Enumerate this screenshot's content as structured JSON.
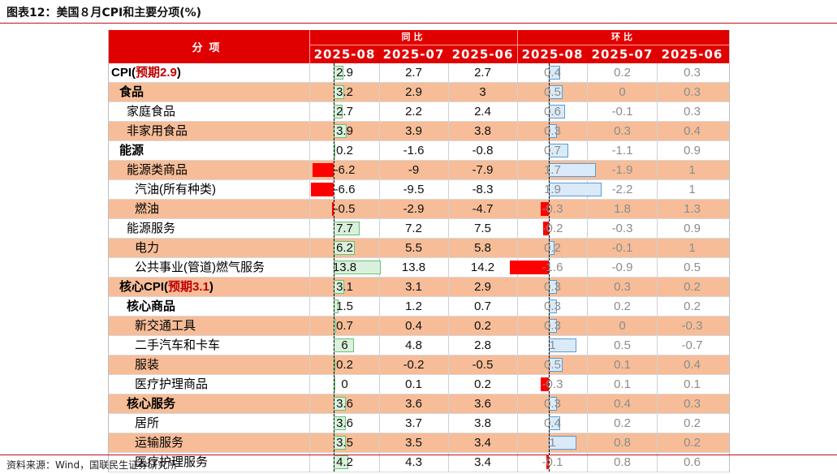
{
  "title": "图表12：美国８月CPI和主要分项(%)",
  "footer": "资料来源：Wind，国联民生证券研究所",
  "header": {
    "category": "分项",
    "yoy_label": "同比",
    "mom_label": "环比",
    "periods": [
      "2025-08",
      "2025-07",
      "2025-06"
    ]
  },
  "colors": {
    "header_bg": "#e00000",
    "highlight_row": "#f6bd98",
    "negative_bar": "#ff0000",
    "yoy_bar": "#6bbf76",
    "mom_bar": "#5b9bd5"
  },
  "rows": [
    {
      "label": "CPI(",
      "expect": "预期2.9",
      "close": ")",
      "level": 0,
      "bold": true,
      "highlight": false,
      "yoy": [
        2.9,
        2.7,
        2.7
      ],
      "mom": [
        0.4,
        0.2,
        0.3
      ]
    },
    {
      "label": "食品",
      "level": 1,
      "bold": true,
      "highlight": true,
      "yoy": [
        3.2,
        2.9,
        3
      ],
      "mom": [
        0.5,
        0,
        0.3
      ]
    },
    {
      "label": "家庭食品",
      "level": 2,
      "bold": false,
      "highlight": false,
      "yoy": [
        2.7,
        2.2,
        2.4
      ],
      "mom": [
        0.6,
        -0.1,
        0.3
      ]
    },
    {
      "label": "非家用食品",
      "level": 2,
      "bold": false,
      "highlight": true,
      "yoy": [
        3.9,
        3.9,
        3.8
      ],
      "mom": [
        0.3,
        0.3,
        0.4
      ]
    },
    {
      "label": "能源",
      "level": 1,
      "bold": true,
      "highlight": false,
      "yoy": [
        0.2,
        -1.6,
        -0.8
      ],
      "mom": [
        0.7,
        -1.1,
        0.9
      ]
    },
    {
      "label": "能源类商品",
      "level": 2,
      "bold": false,
      "highlight": true,
      "yoy": [
        -6.2,
        -9,
        -7.9
      ],
      "mom": [
        1.7,
        -1.9,
        1
      ]
    },
    {
      "label": "汽油(所有种类)",
      "level": 3,
      "bold": false,
      "highlight": false,
      "yoy": [
        -6.6,
        -9.5,
        -8.3
      ],
      "mom": [
        1.9,
        -2.2,
        1
      ]
    },
    {
      "label": "燃油",
      "level": 3,
      "bold": false,
      "highlight": true,
      "yoy": [
        -0.5,
        -2.9,
        -4.7
      ],
      "mom": [
        -0.3,
        1.8,
        1.3
      ]
    },
    {
      "label": "能源服务",
      "level": 2,
      "bold": false,
      "highlight": false,
      "yoy": [
        7.7,
        7.2,
        7.5
      ],
      "mom": [
        -0.2,
        -0.3,
        0.9
      ]
    },
    {
      "label": "电力",
      "level": 3,
      "bold": false,
      "highlight": true,
      "yoy": [
        6.2,
        5.5,
        5.8
      ],
      "mom": [
        0.2,
        -0.1,
        1
      ]
    },
    {
      "label": "公共事业(管道)燃气服务",
      "level": 3,
      "bold": false,
      "highlight": false,
      "yoy": [
        13.8,
        13.8,
        14.2
      ],
      "mom": [
        -1.6,
        -0.9,
        0.5
      ]
    },
    {
      "label": "核心CPI(",
      "expect": "预期3.1",
      "close": ")",
      "level": 1,
      "bold": true,
      "highlight": true,
      "yoy": [
        3.1,
        3.1,
        2.9
      ],
      "mom": [
        0.3,
        0.3,
        0.2
      ]
    },
    {
      "label": "核心商品",
      "level": 2,
      "bold": true,
      "highlight": false,
      "yoy": [
        1.5,
        1.2,
        0.7
      ],
      "mom": [
        0.3,
        0.2,
        0.2
      ]
    },
    {
      "label": "新交通工具",
      "level": 3,
      "bold": false,
      "highlight": true,
      "yoy": [
        0.7,
        0.4,
        0.2
      ],
      "mom": [
        0.3,
        0,
        -0.3
      ]
    },
    {
      "label": "二手汽车和卡车",
      "level": 3,
      "bold": false,
      "highlight": false,
      "yoy": [
        6,
        4.8,
        2.8
      ],
      "mom": [
        1,
        0.5,
        -0.7
      ]
    },
    {
      "label": "服装",
      "level": 3,
      "bold": false,
      "highlight": true,
      "yoy": [
        0.2,
        -0.2,
        -0.5
      ],
      "mom": [
        0.5,
        0.1,
        0.4
      ]
    },
    {
      "label": "医疗护理商品",
      "level": 3,
      "bold": false,
      "highlight": false,
      "yoy": [
        0,
        0.1,
        0.2
      ],
      "mom": [
        -0.3,
        0.1,
        0.1
      ]
    },
    {
      "label": "核心服务",
      "level": 2,
      "bold": true,
      "highlight": true,
      "yoy": [
        3.6,
        3.6,
        3.6
      ],
      "mom": [
        0.3,
        0.4,
        0.3
      ]
    },
    {
      "label": "居所",
      "level": 3,
      "bold": false,
      "highlight": false,
      "yoy": [
        3.6,
        3.7,
        3.8
      ],
      "mom": [
        0.4,
        0.2,
        0.2
      ]
    },
    {
      "label": "运输服务",
      "level": 3,
      "bold": false,
      "highlight": true,
      "yoy": [
        3.5,
        3.5,
        3.4
      ],
      "mom": [
        1,
        0.8,
        0.2
      ]
    },
    {
      "label": "医疗护理服务",
      "level": 3,
      "bold": false,
      "highlight": false,
      "yoy": [
        4.2,
        4.3,
        3.4
      ],
      "mom": [
        -0.1,
        0.8,
        0.6
      ]
    }
  ]
}
